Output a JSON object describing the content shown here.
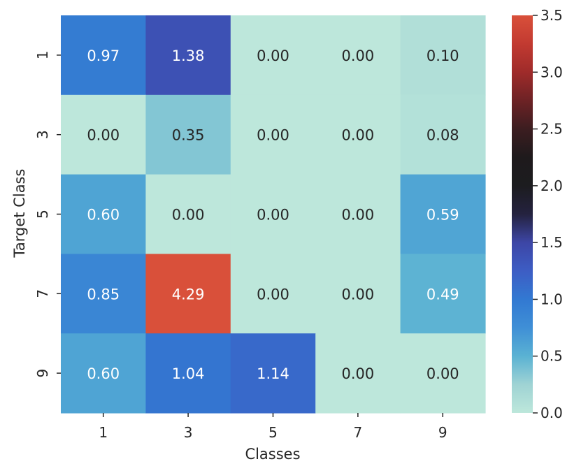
{
  "chart_data": {
    "type": "heatmap",
    "title": "",
    "xlabel": "Classes",
    "ylabel": "Target Class",
    "x_categories": [
      "1",
      "3",
      "5",
      "7",
      "9"
    ],
    "y_categories": [
      "1",
      "3",
      "5",
      "7",
      "9"
    ],
    "values": [
      [
        0.97,
        1.38,
        0.0,
        0.0,
        0.1
      ],
      [
        0.0,
        0.35,
        0.0,
        0.0,
        0.08
      ],
      [
        0.6,
        0.0,
        0.0,
        0.0,
        0.59
      ],
      [
        0.85,
        4.29,
        0.0,
        0.0,
        0.49
      ],
      [
        0.6,
        1.04,
        1.14,
        0.0,
        0.0
      ]
    ],
    "cell_labels": [
      [
        "0.97",
        "1.38",
        "0.00",
        "0.00",
        "0.10"
      ],
      [
        "0.00",
        "0.35",
        "0.00",
        "0.00",
        "0.08"
      ],
      [
        "0.60",
        "0.00",
        "0.00",
        "0.00",
        "0.59"
      ],
      [
        "0.85",
        "4.29",
        "0.00",
        "0.00",
        "0.49"
      ],
      [
        "0.60",
        "1.04",
        "1.14",
        "0.00",
        "0.00"
      ]
    ],
    "colorbar": {
      "vmin": 0.0,
      "vmax": 3.5,
      "center": 1.75,
      "colormap": "icefire",
      "ticks": [
        0.0,
        0.5,
        1.0,
        1.5,
        2.0,
        2.5,
        3.0,
        3.5
      ],
      "tick_labels": [
        "0.0",
        "0.5",
        "1.0",
        "1.5",
        "2.0",
        "2.5",
        "3.0",
        "3.5"
      ]
    },
    "colormap_stops": [
      {
        "value": 0.0,
        "color": "#bde7db"
      },
      {
        "value": 0.25,
        "color": "#9fd3d4"
      },
      {
        "value": 0.5,
        "color": "#5ab2d3"
      },
      {
        "value": 0.75,
        "color": "#3f8fd6"
      },
      {
        "value": 1.0,
        "color": "#3279d2"
      },
      {
        "value": 1.25,
        "color": "#3d5dc4"
      },
      {
        "value": 1.5,
        "color": "#3d46a6"
      },
      {
        "value": 1.75,
        "color": "#24223f"
      },
      {
        "value": 2.0,
        "color": "#1c1c1f"
      },
      {
        "value": 2.25,
        "color": "#1e1a1c"
      },
      {
        "value": 2.5,
        "color": "#3c1d20"
      },
      {
        "value": 2.75,
        "color": "#6d2225"
      },
      {
        "value": 3.0,
        "color": "#9f2b2a"
      },
      {
        "value": 3.25,
        "color": "#c23a31"
      },
      {
        "value": 3.5,
        "color": "#d9503a"
      }
    ],
    "text_colors": {
      "light": "#ffffff",
      "dark": "#262626"
    },
    "light_text_threshold": 0.45
  }
}
